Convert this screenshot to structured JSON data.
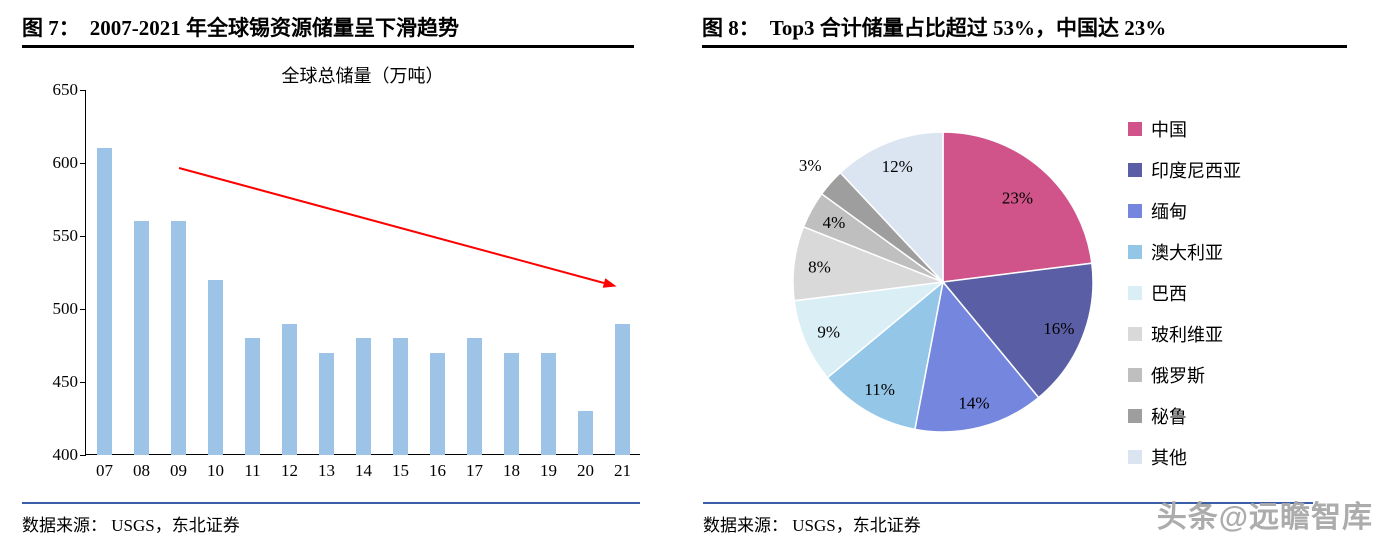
{
  "watermark": "头条@远瞻智库",
  "left_panel": {
    "fig_label": "图 7：",
    "title": "2007-2021 年全球锡资源储量呈下滑趋势",
    "source": "数据来源： USGS，东北证券"
  },
  "right_panel": {
    "fig_label": "图 8：",
    "title": "Top3 合计储量占比超过 53%，中国达 23%",
    "source": "数据来源： USGS，东北证券"
  },
  "accent_colors": {
    "header_rule": "#000000",
    "source_rule": "#3a5fa8",
    "bar_fill": "#9dc3e6",
    "trend_arrow": "#ff0000"
  },
  "chart_data": [
    {
      "type": "bar",
      "title": "全球总储量（万吨）",
      "categories": [
        "07",
        "08",
        "09",
        "10",
        "11",
        "12",
        "13",
        "14",
        "15",
        "16",
        "17",
        "18",
        "19",
        "20",
        "21"
      ],
      "values": [
        610,
        560,
        560,
        520,
        480,
        490,
        470,
        480,
        480,
        470,
        480,
        470,
        470,
        430,
        490
      ],
      "xlabel": "",
      "ylabel": "",
      "ylim": [
        400,
        650
      ],
      "yticks": [
        400,
        450,
        500,
        550,
        600,
        650
      ],
      "grid": false,
      "bar_color": "#9dc3e6",
      "trend_arrow_color": "#ff0000",
      "annotation": "red downward trend arrow"
    },
    {
      "type": "pie",
      "title": "",
      "label_format": "percent",
      "legend_position": "right",
      "series": [
        {
          "name": "中国",
          "value": 23,
          "color": "#d0548a"
        },
        {
          "name": "印度尼西亚",
          "value": 16,
          "color": "#5a5fa5"
        },
        {
          "name": "缅甸",
          "value": 14,
          "color": "#7486dd"
        },
        {
          "name": "澳大利亚",
          "value": 11,
          "color": "#94c6e8"
        },
        {
          "name": "巴西",
          "value": 9,
          "color": "#daeef5"
        },
        {
          "name": "玻利维亚",
          "value": 8,
          "color": "#d9d9d9"
        },
        {
          "name": "俄罗斯",
          "value": 4,
          "color": "#bfbfbf"
        },
        {
          "name": "秘鲁",
          "value": 3,
          "color": "#9e9e9e"
        },
        {
          "name": "其他",
          "value": 12,
          "color": "#dbe5f1"
        }
      ]
    }
  ]
}
